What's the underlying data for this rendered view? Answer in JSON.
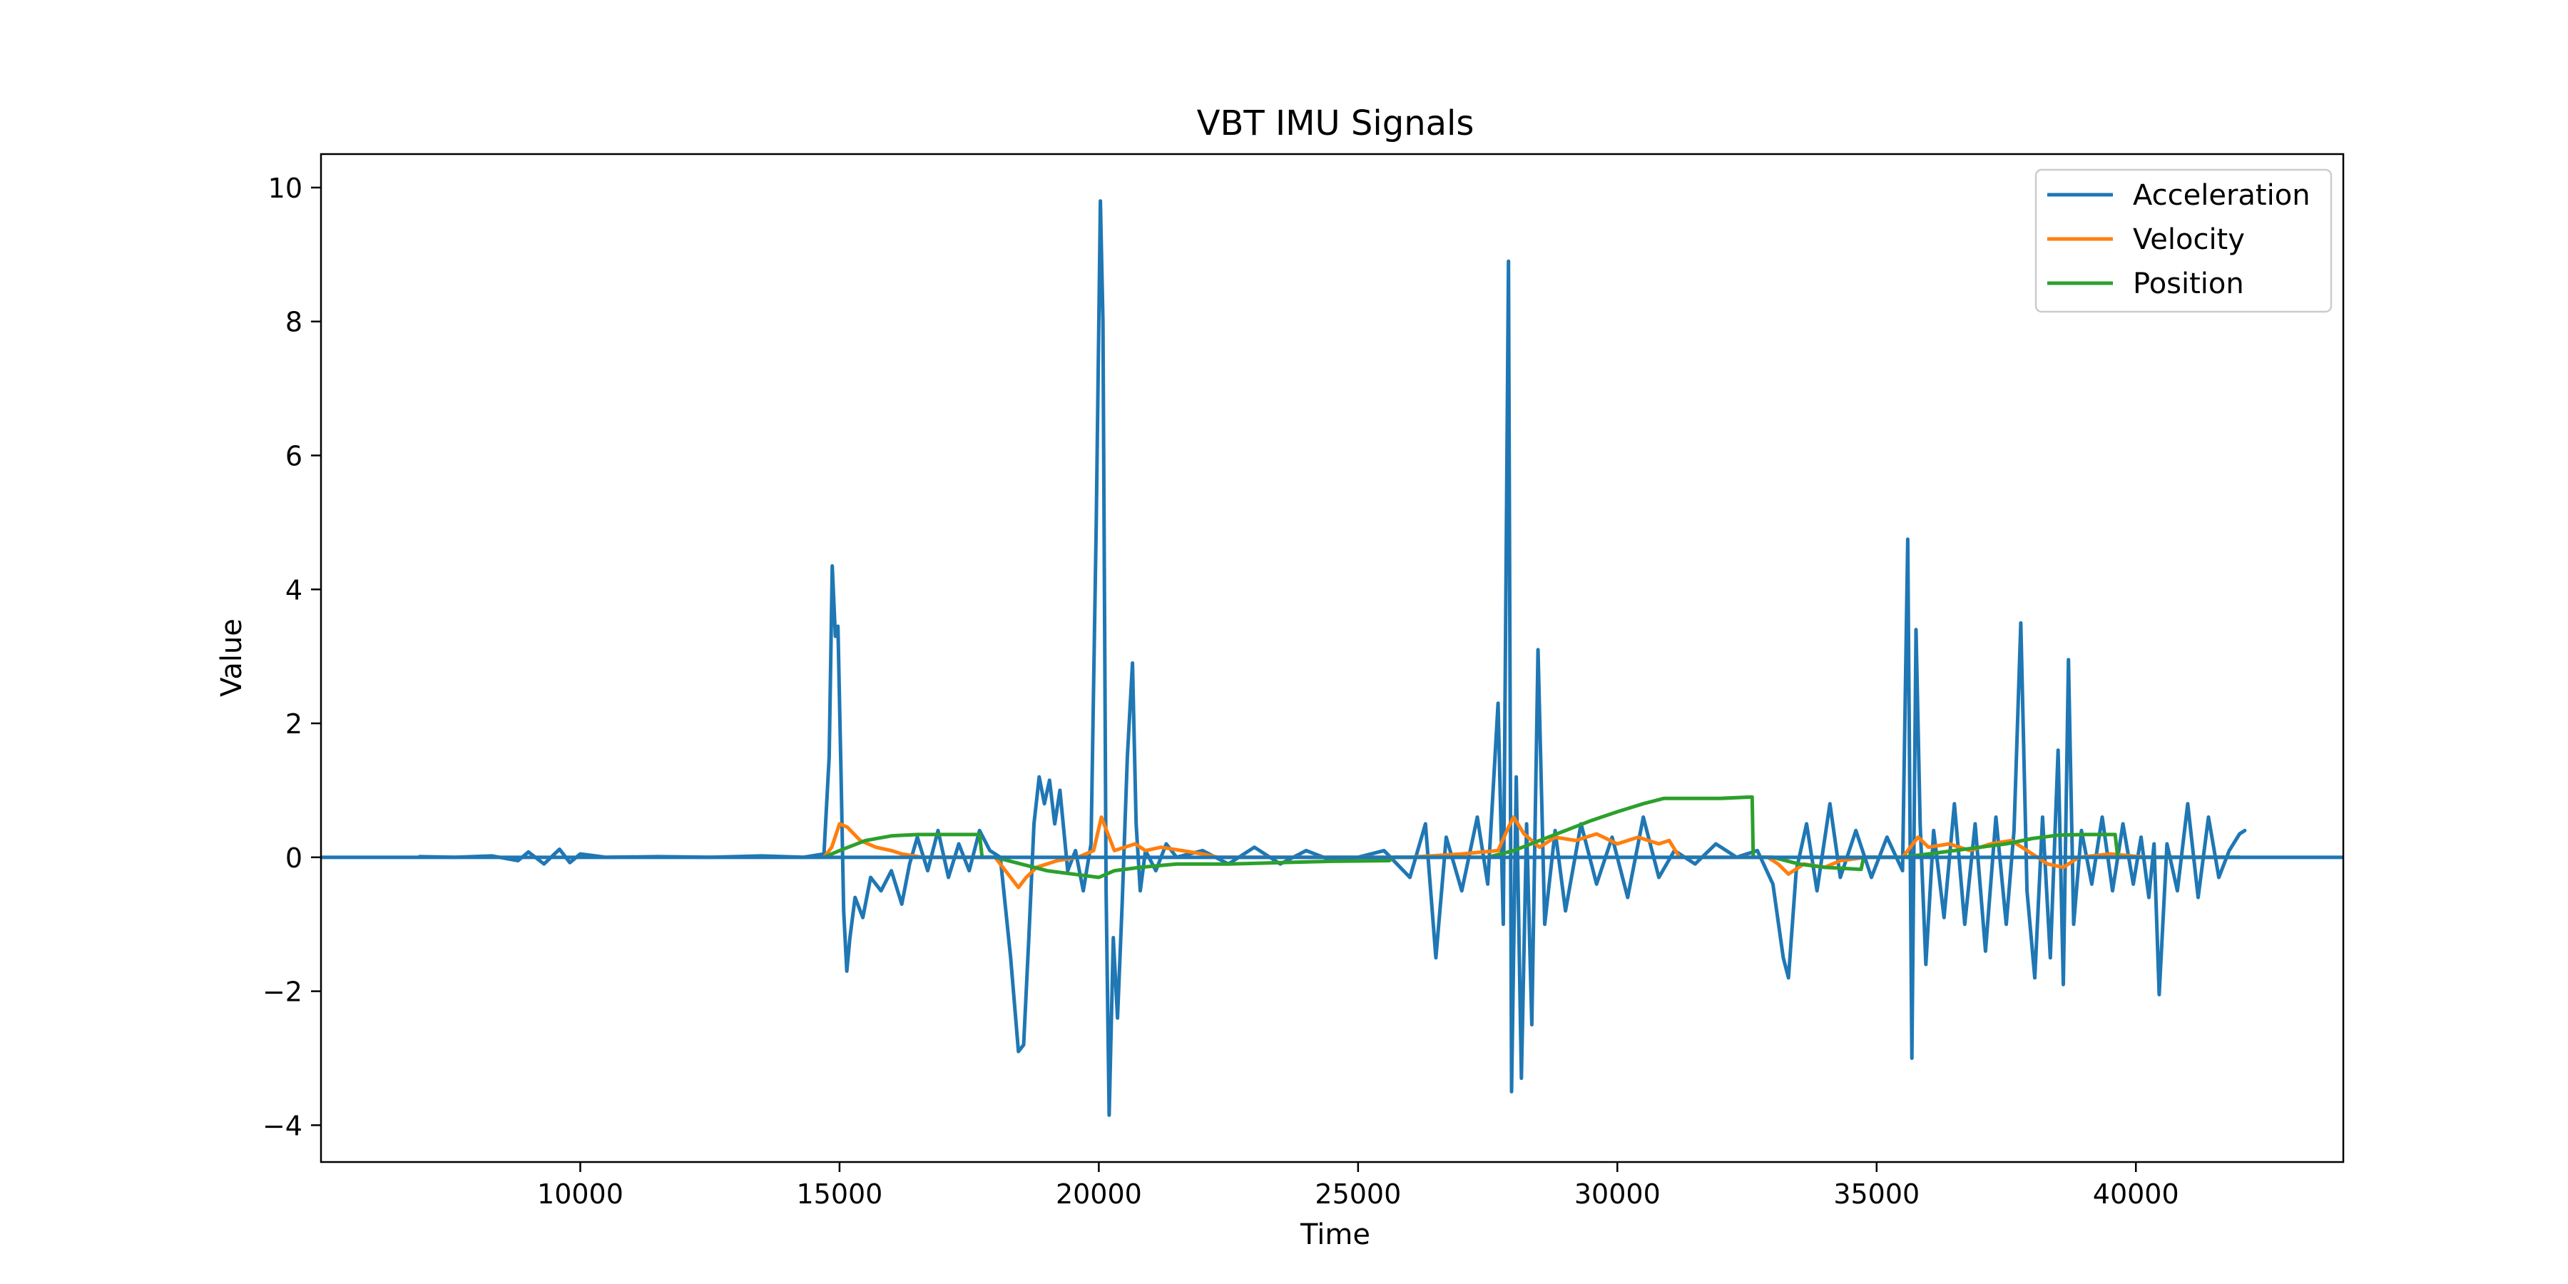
{
  "chart_data": {
    "type": "line",
    "title": "VBT IMU Signals",
    "xlabel": "Time",
    "ylabel": "Value",
    "xlim": [
      5000,
      44000
    ],
    "ylim": [
      -4.55,
      10.5
    ],
    "xticks": [
      10000,
      15000,
      20000,
      25000,
      30000,
      35000,
      40000
    ],
    "yticks": [
      -4,
      -2,
      0,
      2,
      4,
      6,
      8,
      10
    ],
    "xtick_labels": [
      "10000",
      "15000",
      "20000",
      "25000",
      "30000",
      "35000",
      "40000"
    ],
    "ytick_labels": [
      "−4",
      "−2",
      "0",
      "2",
      "4",
      "6",
      "8",
      "10"
    ],
    "grid": false,
    "legend_position": "top-right",
    "horizontal_line": {
      "y": 0,
      "color": "#1f77b4"
    },
    "series": [
      {
        "name": "Acceleration",
        "color": "#1f77b4",
        "points": [
          [
            6900,
            0.01
          ],
          [
            7600,
            0.0
          ],
          [
            8300,
            0.02
          ],
          [
            8800,
            -0.05
          ],
          [
            9000,
            0.08
          ],
          [
            9300,
            -0.1
          ],
          [
            9600,
            0.12
          ],
          [
            9800,
            -0.08
          ],
          [
            10000,
            0.05
          ],
          [
            10500,
            0.0
          ],
          [
            11500,
            0.01
          ],
          [
            12500,
            0.0
          ],
          [
            13500,
            0.02
          ],
          [
            14300,
            0.0
          ],
          [
            14700,
            0.05
          ],
          [
            14800,
            1.5
          ],
          [
            14860,
            4.35
          ],
          [
            14920,
            3.3
          ],
          [
            14970,
            3.45
          ],
          [
            15030,
            1.2
          ],
          [
            15080,
            -0.8
          ],
          [
            15140,
            -1.7
          ],
          [
            15200,
            -1.2
          ],
          [
            15300,
            -0.6
          ],
          [
            15450,
            -0.9
          ],
          [
            15600,
            -0.3
          ],
          [
            15800,
            -0.5
          ],
          [
            16000,
            -0.2
          ],
          [
            16200,
            -0.7
          ],
          [
            16350,
            -0.1
          ],
          [
            16500,
            0.3
          ],
          [
            16700,
            -0.2
          ],
          [
            16900,
            0.4
          ],
          [
            17100,
            -0.3
          ],
          [
            17300,
            0.2
          ],
          [
            17500,
            -0.2
          ],
          [
            17700,
            0.4
          ],
          [
            17900,
            0.1
          ],
          [
            18100,
            0.0
          ],
          [
            18300,
            -1.5
          ],
          [
            18450,
            -2.9
          ],
          [
            18550,
            -2.8
          ],
          [
            18650,
            -1.2
          ],
          [
            18750,
            0.5
          ],
          [
            18850,
            1.2
          ],
          [
            18950,
            0.8
          ],
          [
            19050,
            1.15
          ],
          [
            19150,
            0.5
          ],
          [
            19250,
            1.0
          ],
          [
            19400,
            -0.2
          ],
          [
            19550,
            0.1
          ],
          [
            19700,
            -0.5
          ],
          [
            19850,
            0.2
          ],
          [
            19950,
            5.0
          ],
          [
            20030,
            9.8
          ],
          [
            20080,
            8.0
          ],
          [
            20140,
            -0.5
          ],
          [
            20200,
            -3.85
          ],
          [
            20280,
            -1.2
          ],
          [
            20360,
            -2.4
          ],
          [
            20450,
            -0.7
          ],
          [
            20550,
            1.5
          ],
          [
            20650,
            2.9
          ],
          [
            20720,
            0.5
          ],
          [
            20800,
            -0.5
          ],
          [
            20900,
            0.1
          ],
          [
            21100,
            -0.2
          ],
          [
            21300,
            0.2
          ],
          [
            21500,
            0.0
          ],
          [
            22000,
            0.1
          ],
          [
            22500,
            -0.1
          ],
          [
            23000,
            0.15
          ],
          [
            23500,
            -0.1
          ],
          [
            24000,
            0.1
          ],
          [
            24500,
            -0.05
          ],
          [
            25000,
            0.0
          ],
          [
            25500,
            0.1
          ],
          [
            26000,
            -0.3
          ],
          [
            26300,
            0.5
          ],
          [
            26500,
            -1.5
          ],
          [
            26700,
            0.3
          ],
          [
            27000,
            -0.5
          ],
          [
            27300,
            0.6
          ],
          [
            27500,
            -0.4
          ],
          [
            27700,
            2.3
          ],
          [
            27800,
            -1.0
          ],
          [
            27900,
            8.9
          ],
          [
            27960,
            -3.5
          ],
          [
            28050,
            1.2
          ],
          [
            28150,
            -3.3
          ],
          [
            28250,
            0.5
          ],
          [
            28350,
            -2.5
          ],
          [
            28470,
            3.1
          ],
          [
            28600,
            -1.0
          ],
          [
            28800,
            0.4
          ],
          [
            29000,
            -0.8
          ],
          [
            29300,
            0.5
          ],
          [
            29600,
            -0.4
          ],
          [
            29900,
            0.3
          ],
          [
            30200,
            -0.6
          ],
          [
            30500,
            0.6
          ],
          [
            30800,
            -0.3
          ],
          [
            31100,
            0.1
          ],
          [
            31500,
            -0.1
          ],
          [
            31900,
            0.2
          ],
          [
            32300,
            0.0
          ],
          [
            32700,
            0.1
          ],
          [
            33000,
            -0.4
          ],
          [
            33200,
            -1.5
          ],
          [
            33300,
            -1.8
          ],
          [
            33450,
            -0.2
          ],
          [
            33650,
            0.5
          ],
          [
            33850,
            -0.5
          ],
          [
            34100,
            0.8
          ],
          [
            34300,
            -0.3
          ],
          [
            34600,
            0.4
          ],
          [
            34900,
            -0.3
          ],
          [
            35200,
            0.3
          ],
          [
            35500,
            -0.2
          ],
          [
            35600,
            4.75
          ],
          [
            35680,
            -3.0
          ],
          [
            35760,
            3.4
          ],
          [
            35840,
            0.5
          ],
          [
            35950,
            -1.6
          ],
          [
            36100,
            0.4
          ],
          [
            36300,
            -0.9
          ],
          [
            36500,
            0.8
          ],
          [
            36700,
            -1.0
          ],
          [
            36900,
            0.5
          ],
          [
            37100,
            -1.4
          ],
          [
            37300,
            0.6
          ],
          [
            37500,
            -1.0
          ],
          [
            37650,
            0.4
          ],
          [
            37780,
            3.5
          ],
          [
            37900,
            -0.5
          ],
          [
            38050,
            -1.8
          ],
          [
            38200,
            0.6
          ],
          [
            38350,
            -1.5
          ],
          [
            38500,
            1.6
          ],
          [
            38600,
            -1.9
          ],
          [
            38700,
            2.95
          ],
          [
            38800,
            -1.0
          ],
          [
            38950,
            0.4
          ],
          [
            39150,
            -0.4
          ],
          [
            39350,
            0.6
          ],
          [
            39550,
            -0.5
          ],
          [
            39750,
            0.5
          ],
          [
            39950,
            -0.4
          ],
          [
            40100,
            0.3
          ],
          [
            40250,
            -0.6
          ],
          [
            40350,
            0.2
          ],
          [
            40450,
            -2.05
          ],
          [
            40600,
            0.2
          ],
          [
            40800,
            -0.5
          ],
          [
            41000,
            0.8
          ],
          [
            41200,
            -0.6
          ],
          [
            41400,
            0.6
          ],
          [
            41600,
            -0.3
          ],
          [
            41800,
            0.1
          ],
          [
            42000,
            0.35
          ],
          [
            42100,
            0.4
          ]
        ]
      },
      {
        "name": "Velocity",
        "color": "#ff7f0e",
        "points": [
          [
            14700,
            0.0
          ],
          [
            14850,
            0.15
          ],
          [
            15000,
            0.5
          ],
          [
            15150,
            0.45
          ],
          [
            15400,
            0.25
          ],
          [
            15700,
            0.15
          ],
          [
            16000,
            0.1
          ],
          [
            16200,
            0.05
          ],
          [
            16600,
            0.0
          ],
          [
            18000,
            0.0
          ],
          [
            18200,
            -0.2
          ],
          [
            18450,
            -0.45
          ],
          [
            18600,
            -0.3
          ],
          [
            18800,
            -0.15
          ],
          [
            19200,
            -0.05
          ],
          [
            19600,
            0.0
          ],
          [
            19900,
            0.1
          ],
          [
            20050,
            0.6
          ],
          [
            20150,
            0.4
          ],
          [
            20300,
            0.1
          ],
          [
            20500,
            0.15
          ],
          [
            20700,
            0.2
          ],
          [
            20900,
            0.1
          ],
          [
            21200,
            0.15
          ],
          [
            21600,
            0.1
          ],
          [
            22000,
            0.05
          ],
          [
            22300,
            0.0
          ],
          [
            25600,
            0.0
          ],
          [
            26000,
            0.0
          ],
          [
            27000,
            0.05
          ],
          [
            27700,
            0.1
          ],
          [
            27900,
            0.45
          ],
          [
            28000,
            0.6
          ],
          [
            28200,
            0.35
          ],
          [
            28500,
            0.15
          ],
          [
            28800,
            0.3
          ],
          [
            29200,
            0.25
          ],
          [
            29600,
            0.35
          ],
          [
            30000,
            0.2
          ],
          [
            30400,
            0.3
          ],
          [
            30800,
            0.2
          ],
          [
            31000,
            0.25
          ],
          [
            31200,
            0.0
          ],
          [
            32900,
            0.0
          ],
          [
            33100,
            -0.1
          ],
          [
            33300,
            -0.25
          ],
          [
            33600,
            -0.1
          ],
          [
            34000,
            -0.15
          ],
          [
            34300,
            -0.05
          ],
          [
            34800,
            0.0
          ],
          [
            35500,
            0.0
          ],
          [
            35800,
            0.3
          ],
          [
            36000,
            0.15
          ],
          [
            36400,
            0.2
          ],
          [
            36800,
            0.1
          ],
          [
            37200,
            0.2
          ],
          [
            37600,
            0.25
          ],
          [
            37900,
            0.1
          ],
          [
            38300,
            -0.1
          ],
          [
            38600,
            -0.15
          ],
          [
            38900,
            0.0
          ],
          [
            39500,
            0.05
          ],
          [
            40200,
            0.0
          ],
          [
            41800,
            0.0
          ]
        ]
      },
      {
        "name": "Position",
        "color": "#2ca02c",
        "points": [
          [
            14700,
            0.0
          ],
          [
            15000,
            0.1
          ],
          [
            15500,
            0.25
          ],
          [
            16000,
            0.32
          ],
          [
            16500,
            0.34
          ],
          [
            17000,
            0.34
          ],
          [
            17700,
            0.34
          ],
          [
            17750,
            0.0
          ],
          [
            18000,
            0.0
          ],
          [
            18500,
            -0.1
          ],
          [
            19000,
            -0.2
          ],
          [
            19500,
            -0.25
          ],
          [
            20000,
            -0.3
          ],
          [
            20300,
            -0.2
          ],
          [
            20800,
            -0.15
          ],
          [
            21500,
            -0.1
          ],
          [
            22500,
            -0.1
          ],
          [
            23500,
            -0.08
          ],
          [
            24500,
            -0.06
          ],
          [
            25600,
            -0.05
          ],
          [
            25700,
            0.0
          ],
          [
            27500,
            0.0
          ],
          [
            28000,
            0.1
          ],
          [
            28500,
            0.25
          ],
          [
            29000,
            0.4
          ],
          [
            29500,
            0.55
          ],
          [
            30000,
            0.68
          ],
          [
            30500,
            0.8
          ],
          [
            30900,
            0.88
          ],
          [
            31500,
            0.88
          ],
          [
            32000,
            0.88
          ],
          [
            32600,
            0.9
          ],
          [
            32620,
            0.0
          ],
          [
            33000,
            0.0
          ],
          [
            33500,
            -0.1
          ],
          [
            34000,
            -0.15
          ],
          [
            34700,
            -0.18
          ],
          [
            34750,
            0.0
          ],
          [
            35500,
            0.0
          ],
          [
            36000,
            0.05
          ],
          [
            36500,
            0.1
          ],
          [
            37000,
            0.15
          ],
          [
            37500,
            0.2
          ],
          [
            38000,
            0.28
          ],
          [
            38500,
            0.33
          ],
          [
            39000,
            0.34
          ],
          [
            39600,
            0.34
          ],
          [
            39650,
            0.0
          ],
          [
            42000,
            0.0
          ]
        ]
      }
    ]
  }
}
